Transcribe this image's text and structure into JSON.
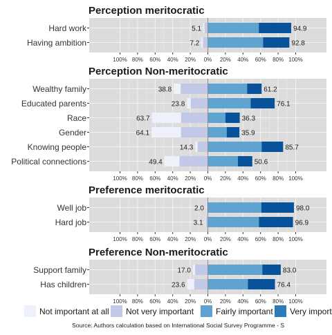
{
  "colors": {
    "panel_bg": "#dcdcdc",
    "grid_major": "#f2f2f2",
    "grid_minor": "#e8e8e8",
    "zero_line": "#8c8c8c",
    "not_important_at_all": "#eef0fb",
    "not_very_important": "#c2c9e7",
    "fairly_important": "#5fa3d0",
    "fairly_important_dark": "#2b7bba",
    "very_important": "#08529b",
    "text": "#1a1a1a",
    "axis_text": "#333333"
  },
  "chart_data": {
    "type": "bar",
    "subtype": "diverging-stacked-horizontal",
    "xlim": [
      -100,
      100
    ],
    "x_ticks": [
      -100,
      -80,
      -60,
      -40,
      -20,
      0,
      20,
      40,
      60,
      80,
      100
    ],
    "x_tick_labels": [
      "100%",
      "80%",
      "60%",
      "40%",
      "20%",
      "0%",
      "20%",
      "40%",
      "60%",
      "80%",
      "100%"
    ],
    "grid": true,
    "legend": {
      "position": "bottom",
      "items": [
        {
          "label": "Not important at all",
          "color_key": "not_important_at_all"
        },
        {
          "label": "Not very important",
          "color_key": "not_very_important"
        },
        {
          "label": "Fairly important",
          "color_key": "fairly_important"
        },
        {
          "label": "Very import",
          "color_key": "fairly_important_dark"
        }
      ]
    },
    "source_note": "Source: Authors calculation based on International Social Survey Programme - S",
    "panels": [
      {
        "title": "Perception meritocratic",
        "rows": [
          {
            "label": "Hard work",
            "left_total": 5.1,
            "right_total": 94.9,
            "segments": [
              1.3,
              3.8,
              58.0,
              36.9
            ]
          },
          {
            "label": "Having ambition",
            "left_total": 7.2,
            "right_total": 92.8,
            "segments": [
              1.6,
              5.6,
              62.9,
              29.9
            ]
          }
        ]
      },
      {
        "title": "Perception Non-meritocratic",
        "rows": [
          {
            "label": "Wealthy family",
            "left_total": 38.8,
            "right_total": 61.2,
            "segments": [
              7.8,
              31.0,
              44.7,
              16.5
            ]
          },
          {
            "label": "Educated parents",
            "left_total": 23.8,
            "right_total": 76.1,
            "segments": [
              4.3,
              19.5,
              48.8,
              27.3
            ]
          },
          {
            "label": "Race",
            "left_total": 63.7,
            "right_total": 36.3,
            "segments": [
              33.2,
              30.5,
              20.0,
              16.3
            ]
          },
          {
            "label": "Gender",
            "left_total": 64.1,
            "right_total": 35.9,
            "segments": [
              33.5,
              30.6,
              21.5,
              14.4
            ]
          },
          {
            "label": "Knowing people",
            "left_total": 14.3,
            "right_total": 85.7,
            "segments": [
              2.6,
              11.7,
              61.2,
              24.5
            ]
          },
          {
            "label": "Political connections",
            "left_total": 49.4,
            "right_total": 50.6,
            "segments": [
              17.1,
              32.3,
              34.2,
              16.4
            ]
          }
        ]
      },
      {
        "title": "Preference meritocratic",
        "rows": [
          {
            "label": "Well job",
            "left_total": 2.0,
            "right_total": 98.0,
            "segments": [
              0.6,
              1.4,
              60.9,
              37.1
            ]
          },
          {
            "label": "Hard job",
            "left_total": 3.1,
            "right_total": 96.9,
            "segments": [
              0.8,
              2.3,
              58.1,
              38.8
            ]
          }
        ]
      },
      {
        "title": "Preference Non-meritocratic",
        "rows": [
          {
            "label": "Support family",
            "left_total": 17.0,
            "right_total": 83.0,
            "segments": [
              2.5,
              14.5,
              62.0,
              21.0
            ]
          },
          {
            "label": "Has children",
            "left_total": 23.6,
            "right_total": 76.4,
            "segments": [
              8.1,
              15.5,
              45.6,
              30.8
            ]
          }
        ]
      }
    ]
  }
}
